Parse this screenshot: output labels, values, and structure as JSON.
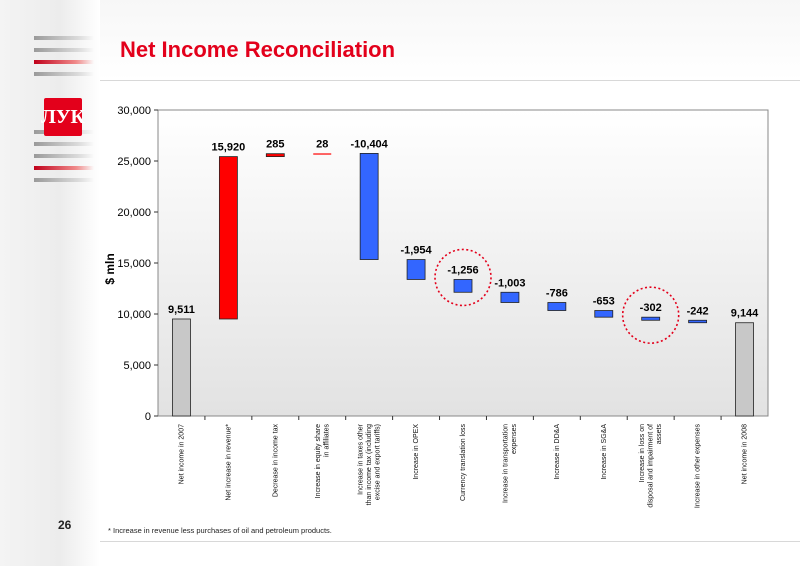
{
  "page": {
    "title": "Net Income Reconciliation",
    "page_number": "26",
    "footnote": "*  Increase in revenue less purchases of oil and petroleum products.",
    "logo_text": "ЛУК"
  },
  "colors": {
    "title": "#e3001b",
    "total_bar": "#c8c8c8",
    "increase_bar": "#ff0000",
    "decrease_bar": "#3366ff",
    "highlight_circle": "#e3001b"
  },
  "chart_data": {
    "type": "bar",
    "subtype": "waterfall",
    "ylabel": "$ mln",
    "ylim": [
      0,
      30000
    ],
    "yticks": [
      0,
      5000,
      10000,
      15000,
      20000,
      25000,
      30000
    ],
    "ytick_labels": [
      "0",
      "5,000",
      "10,000",
      "15,000",
      "20,000",
      "25,000",
      "30,000"
    ],
    "grid": false,
    "categories": [
      "Net income in 2007",
      "Net increase in revenue*",
      "Decrease in income tax",
      "Increase in equity share in affiliates",
      "Increase in taxes other than income tax (including excise and export tariffs)",
      "Increase in OPEX",
      "Currency translation loss",
      "Increase in transportation expenses",
      "Increase in DD&A",
      "Increase in SG&A",
      "Increase in loss on disposal and impairment of assets",
      "Increase in other expenses",
      "Net income in 2008"
    ],
    "values": [
      9511,
      15920,
      285,
      28,
      -10404,
      -1954,
      -1256,
      -1003,
      -786,
      -653,
      -302,
      -242,
      9144
    ],
    "value_labels": [
      "9,511",
      "15,920",
      "285",
      "28",
      "-10,404",
      "-1,954",
      "-1,256",
      "-1,003",
      "-786",
      "-653",
      "-302",
      "-242",
      "9,144"
    ],
    "bar_kinds": [
      "total",
      "increase",
      "increase",
      "increase",
      "decrease",
      "decrease",
      "decrease",
      "decrease",
      "decrease",
      "decrease",
      "decrease",
      "decrease",
      "total"
    ],
    "highlighted": [
      6,
      10
    ]
  }
}
